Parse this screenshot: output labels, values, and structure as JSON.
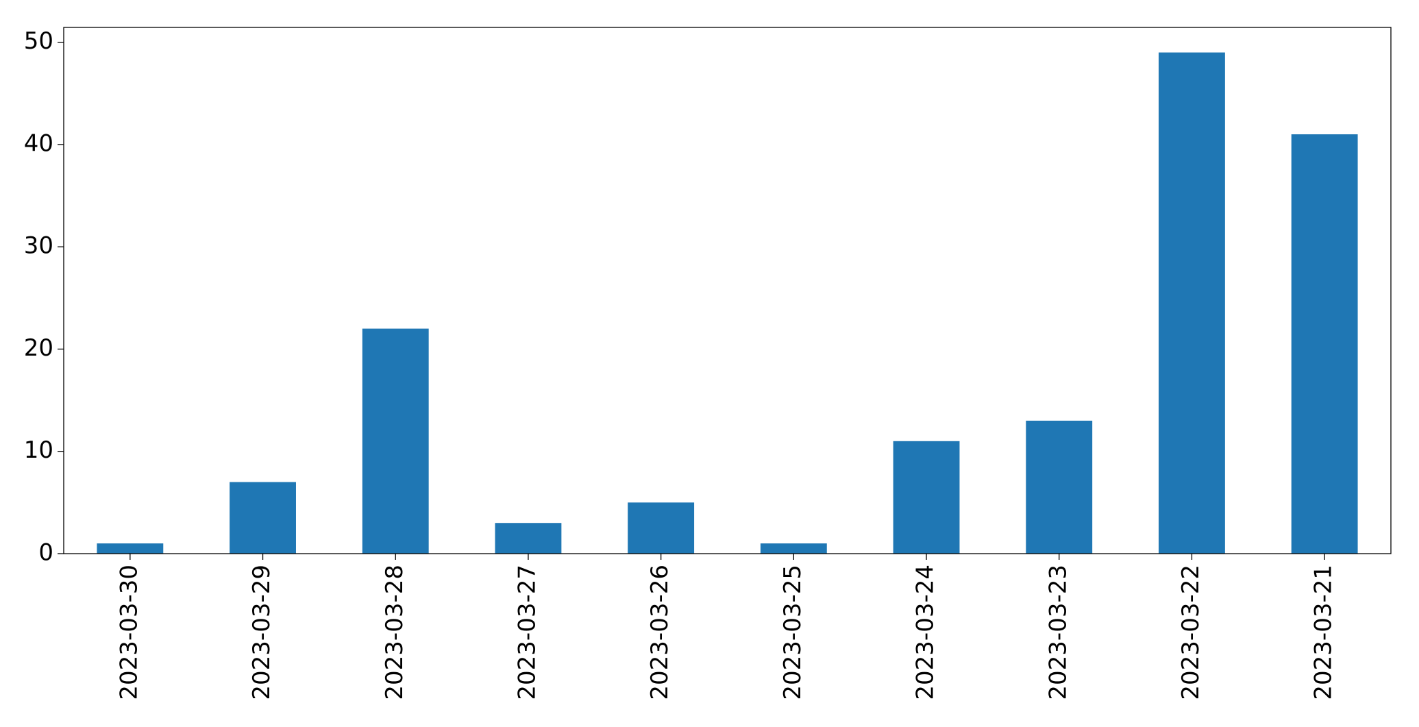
{
  "chart_data": {
    "type": "bar",
    "categories": [
      "2023-03-30",
      "2023-03-29",
      "2023-03-28",
      "2023-03-27",
      "2023-03-26",
      "2023-03-25",
      "2023-03-24",
      "2023-03-23",
      "2023-03-22",
      "2023-03-21"
    ],
    "values": [
      1,
      7,
      22,
      3,
      5,
      1,
      11,
      13,
      49,
      41
    ],
    "color": "#1f77b4",
    "ylim": [
      0,
      51.45
    ],
    "yticks": [
      0,
      10,
      20,
      30,
      40,
      50
    ],
    "grid": false
  }
}
